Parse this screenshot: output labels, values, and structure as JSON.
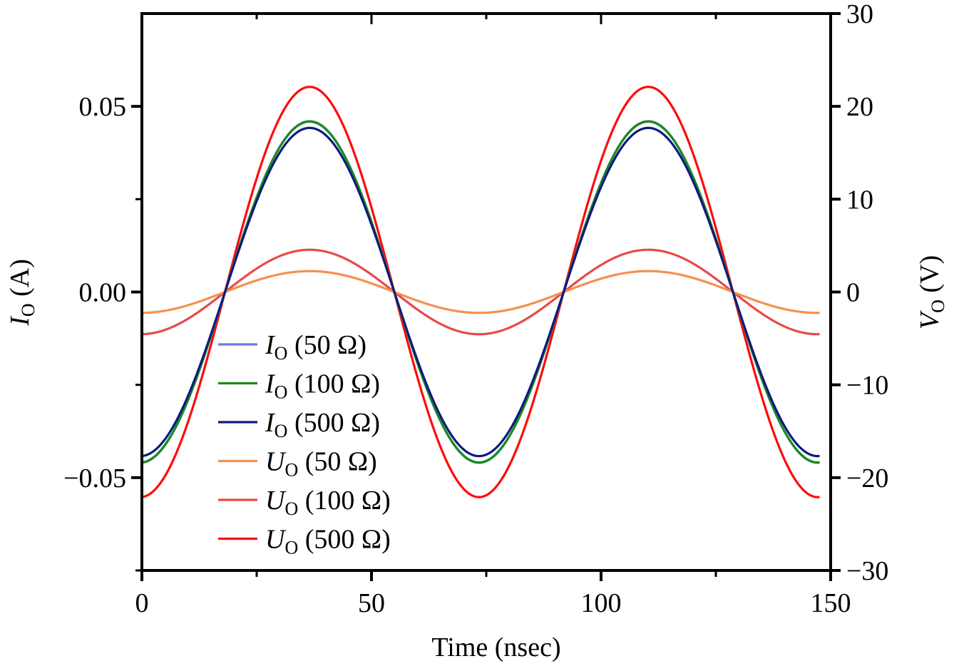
{
  "chart_data": {
    "type": "line",
    "title": "",
    "xlabel": "Time (nsec)",
    "ylabel_left": {
      "symbol": "I",
      "subscript": "O",
      "unit": " (A)"
    },
    "ylabel_right": {
      "symbol": "V",
      "subscript": "O",
      "unit": " (V)"
    },
    "xlim": [
      0,
      150
    ],
    "ylim_left": [
      -0.075,
      0.075
    ],
    "ylim_right": [
      -30,
      30
    ],
    "x_ticks": [
      0,
      50,
      100,
      150
    ],
    "x_tick_labels": [
      "0",
      "50",
      "100",
      "150"
    ],
    "x_minor_ticks": [
      25,
      75,
      125
    ],
    "y_left_ticks": [
      -0.05,
      0.0,
      0.05
    ],
    "y_left_tick_labels": [
      "−0.05",
      "0.00",
      "0.05"
    ],
    "y_left_minor_ticks": [
      -0.075,
      -0.025,
      0.025
    ],
    "y_right_ticks": [
      -30,
      -20,
      -10,
      0,
      10,
      20,
      30
    ],
    "y_right_tick_labels": [
      "−30",
      "−20",
      "−10",
      "0",
      "10",
      "20",
      "30"
    ],
    "grid": false,
    "legend_position": "lower-left",
    "waveform": {
      "shape": "sine",
      "period_nsec": 73.75,
      "zero_crossing_rising_nsec": 18.1,
      "x_end_nsec": 147.6
    },
    "series": [
      {
        "name": "I_O (50 Ω)",
        "symbol": "I",
        "subscript": "O",
        "label_rest": " (50 Ω)",
        "axis": "left",
        "amplitude": 0.046,
        "color": "#6b7fe6"
      },
      {
        "name": "I_O (100 Ω)",
        "symbol": "I",
        "subscript": "O",
        "label_rest": " (100 Ω)",
        "axis": "left",
        "amplitude": 0.0459,
        "color": "#1a8c1a"
      },
      {
        "name": "I_O (500 Ω)",
        "symbol": "I",
        "subscript": "O",
        "label_rest": " (500 Ω)",
        "axis": "left",
        "amplitude": 0.0442,
        "color": "#0d1a80"
      },
      {
        "name": "U_O (50 Ω)",
        "symbol": "U",
        "subscript": "O",
        "label_rest": " (50 Ω)",
        "axis": "right",
        "amplitude": 2.25,
        "color": "#f5904f"
      },
      {
        "name": "U_O (100 Ω)",
        "symbol": "U",
        "subscript": "O",
        "label_rest": " (100 Ω)",
        "axis": "right",
        "amplitude": 4.55,
        "color": "#e84a4a"
      },
      {
        "name": "U_O (500 Ω)",
        "symbol": "U",
        "subscript": "O",
        "label_rest": " (500 Ω)",
        "axis": "right",
        "amplitude": 22.1,
        "color": "#ff0a0a"
      }
    ],
    "draw_order": [
      4,
      3,
      5,
      0,
      1,
      2
    ]
  }
}
